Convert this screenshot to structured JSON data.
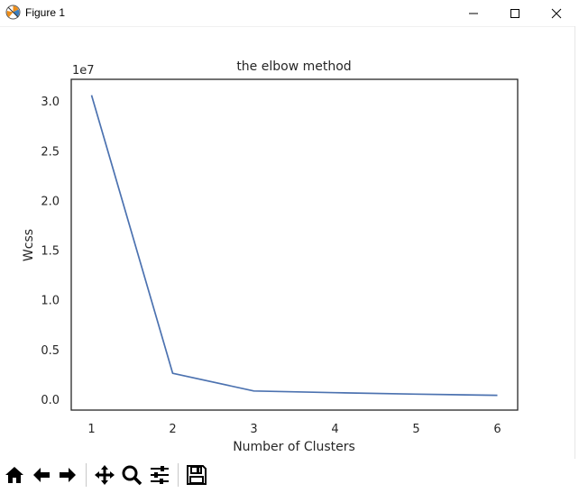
{
  "window": {
    "title": "Figure 1",
    "controls": [
      "minimize",
      "maximize",
      "close"
    ]
  },
  "toolbar": {
    "buttons": [
      {
        "name": "home",
        "icon": "home-icon"
      },
      {
        "name": "back",
        "icon": "arrow-left-icon"
      },
      {
        "name": "forward",
        "icon": "arrow-right-icon"
      },
      {
        "name": "pan",
        "icon": "move-icon"
      },
      {
        "name": "zoom",
        "icon": "magnifier-icon"
      },
      {
        "name": "configure-subplots",
        "icon": "sliders-icon"
      },
      {
        "name": "save",
        "icon": "floppy-disk-icon"
      }
    ]
  },
  "chart_data": {
    "type": "line",
    "title": "the elbow method",
    "xlabel": "Number of Clusters",
    "ylabel": "Wcss",
    "offset_text": "1e7",
    "x": [
      1,
      2,
      3,
      4,
      5,
      6
    ],
    "y": [
      30600000,
      2600000,
      820000,
      650000,
      510000,
      390000
    ],
    "xticks": [
      "1",
      "2",
      "3",
      "4",
      "5",
      "6"
    ],
    "yticks": [
      "0.0",
      "0.5",
      "1.0",
      "1.5",
      "2.0",
      "2.5",
      "3.0"
    ],
    "ytick_values": [
      0,
      5000000,
      10000000,
      15000000,
      20000000,
      25000000,
      30000000
    ],
    "xlim": [
      0.75,
      6.25
    ],
    "ylim": [
      -1100000,
      32200000
    ],
    "grid": false,
    "line_color": "#4c72b0"
  }
}
